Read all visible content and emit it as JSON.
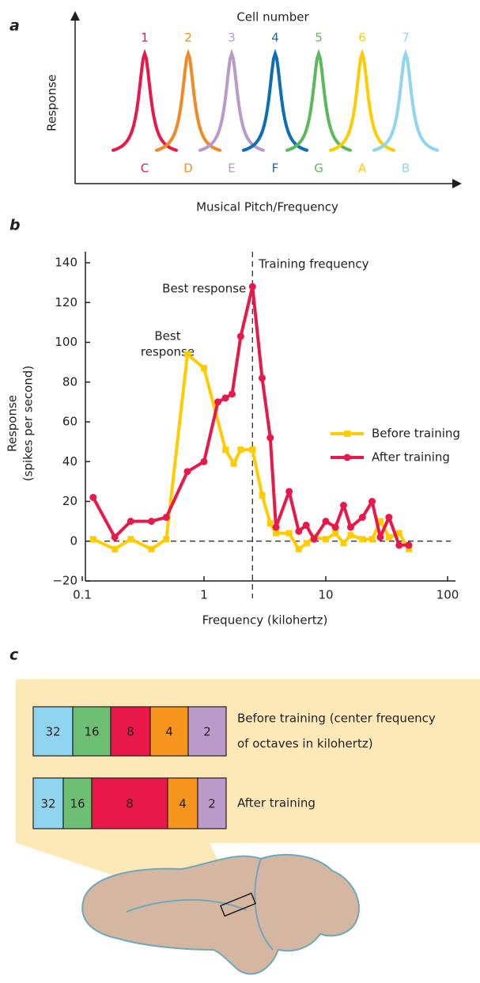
{
  "panel_a": {
    "label": "a",
    "title": "Cell number",
    "y_label": "Response",
    "x_label": "Musical Pitch/Frequency",
    "cells": [
      {
        "number": 1,
        "note": "C",
        "color": "#e8194a"
      },
      {
        "number": 2,
        "note": "D",
        "color": "#f08a24"
      },
      {
        "number": 3,
        "note": "E",
        "color": "#b99ac8"
      },
      {
        "number": 4,
        "note": "F",
        "color": "#0d6eb5"
      },
      {
        "number": 5,
        "note": "G",
        "color": "#5cb85c"
      },
      {
        "number": 6,
        "note": "A",
        "color": "#ffcc00"
      },
      {
        "number": 7,
        "note": "B",
        "color": "#8fd5ef"
      }
    ]
  },
  "chart_data": {
    "type": "line",
    "label": "b",
    "x_label": "Frequency (kilohertz)",
    "y_label": [
      "Response",
      "(spikes per second)"
    ],
    "log_x": true,
    "xlim": [
      0.1,
      100
    ],
    "xticks": [
      0.1,
      1,
      10,
      100
    ],
    "ylim": [
      -20,
      140
    ],
    "yticks": [
      {
        "value": -20,
        "label": "−20"
      },
      0,
      20,
      40,
      60,
      80,
      100,
      120,
      140
    ],
    "training_frequency": 2.5,
    "training_label": "Training frequency",
    "best_after_label": "Best response",
    "best_before_label": [
      "Best",
      "response"
    ],
    "legend": "right",
    "series": [
      {
        "name": "Before training",
        "color": "#ffcc00",
        "marker": "square",
        "x": [
          0.123,
          0.185,
          0.25,
          0.37,
          0.49,
          0.73,
          1.0,
          1.5,
          1.75,
          2.0,
          2.5,
          3.0,
          3.5,
          3.9,
          5,
          6,
          7,
          8,
          10,
          12,
          14,
          16,
          20,
          24,
          28,
          33,
          40,
          48
        ],
        "values": [
          1,
          -4,
          1,
          -4,
          1,
          94,
          87,
          46,
          39,
          46,
          46,
          23,
          9,
          4,
          4,
          -4,
          -1,
          2,
          1,
          4,
          -1,
          3,
          1,
          1,
          10,
          2,
          4,
          -4
        ]
      },
      {
        "name": "After training",
        "color": "#e8194a",
        "marker": "circle",
        "x": [
          0.123,
          0.185,
          0.25,
          0.37,
          0.49,
          0.73,
          1.0,
          1.3,
          1.5,
          1.7,
          2.0,
          2.5,
          3.0,
          3.5,
          3.9,
          5,
          6,
          6.9,
          8,
          10,
          12,
          14,
          16,
          20,
          24,
          28,
          33,
          40,
          48
        ],
        "values": [
          22,
          2,
          10,
          10,
          12,
          35,
          40,
          70,
          72,
          74,
          103,
          128,
          82,
          52,
          7,
          25,
          5,
          8,
          1,
          10,
          7,
          18,
          7,
          12,
          20,
          2,
          12,
          -2,
          -2
        ]
      }
    ]
  },
  "panel_c": {
    "label": "c",
    "colors": [
      "#8fd5ef",
      "#6dbf73",
      "#e8194a",
      "#f7941d",
      "#b99ac8"
    ],
    "rows": [
      {
        "label": [
          "Before training (center frequency",
          "of octaves in kilohertz)"
        ],
        "segments": [
          32,
          16,
          8,
          4,
          2
        ]
      },
      {
        "label": [
          "After training"
        ],
        "segments": [
          32,
          16,
          8,
          4,
          2
        ]
      }
    ]
  }
}
